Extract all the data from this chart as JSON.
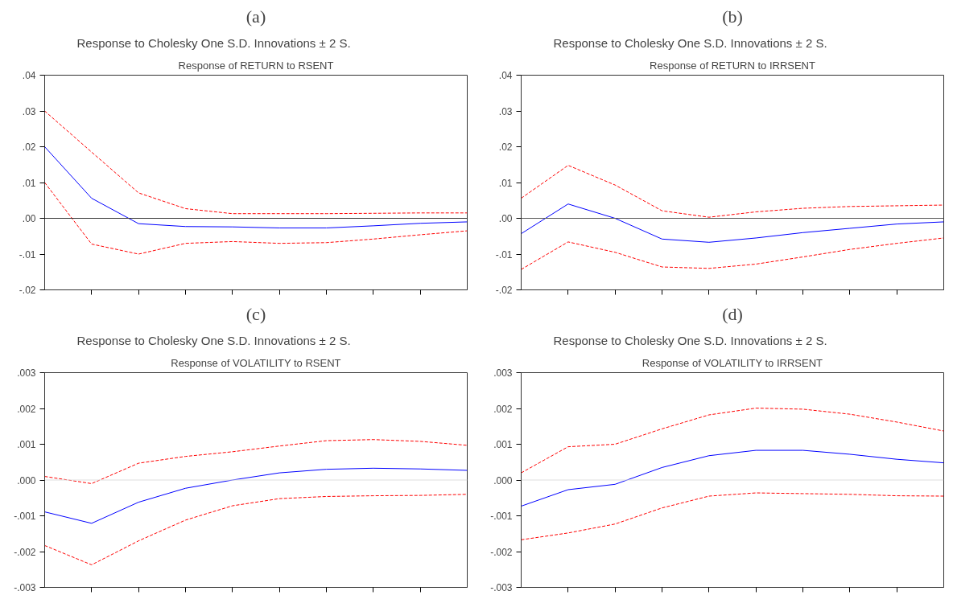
{
  "chart_data": [
    {
      "type": "line",
      "title": "Response to Cholesky One S.D. Innovations ± 2 S.",
      "subtitle": "Response of RETURN to RSENT",
      "annotations": [
        "(a)"
      ],
      "categories": [
        null,
        null,
        null,
        null,
        null,
        null,
        null,
        null,
        null,
        null
      ],
      "ylim": [
        -0.02,
        0.04
      ],
      "yticks": [
        {
          "value": -0.02,
          "label": "-.02"
        },
        {
          "value": -0.01,
          "label": "-.01"
        },
        {
          "value": 0,
          "label": ".00"
        },
        {
          "value": 0.01,
          "label": ".01"
        },
        {
          "value": 0.02,
          "label": ".02"
        },
        {
          "value": 0.03,
          "label": ".03"
        },
        {
          "value": 0.04,
          "label": ".04"
        }
      ],
      "tick_labels": "y",
      "grid": false,
      "ref_lines": [
        {
          "axis": "y",
          "value": 0,
          "color": "#333333"
        }
      ],
      "series": [
        {
          "color": "#0000ff",
          "line_style": "solid",
          "values": [
            0.02,
            0.0056,
            -0.0015,
            -0.0023,
            -0.0024,
            -0.0027,
            -0.0027,
            -0.0021,
            -0.0014,
            -0.001
          ]
        },
        {
          "color": "#ff0000",
          "line_style": "dashed",
          "values": [
            0.03,
            0.0185,
            0.0071,
            0.0027,
            0.0013,
            0.0013,
            0.0013,
            0.0014,
            0.0015,
            0.0015
          ]
        },
        {
          "color": "#ff0000",
          "line_style": "dashed",
          "values": [
            0.01,
            -0.0072,
            -0.01,
            -0.007,
            -0.0065,
            -0.007,
            -0.0068,
            -0.0058,
            -0.0046,
            -0.0035
          ]
        }
      ]
    },
    {
      "type": "line",
      "title": "Response to Cholesky One S.D. Innovations ± 2 S.",
      "subtitle": "Response of RETURN to IRRSENT",
      "annotations": [
        "(b)"
      ],
      "categories": [
        null,
        null,
        null,
        null,
        null,
        null,
        null,
        null,
        null,
        null
      ],
      "ylim": [
        -0.02,
        0.04
      ],
      "yticks": [
        {
          "value": -0.02,
          "label": "-.02"
        },
        {
          "value": -0.01,
          "label": "-.01"
        },
        {
          "value": 0,
          "label": ".00"
        },
        {
          "value": 0.01,
          "label": ".01"
        },
        {
          "value": 0.02,
          "label": ".02"
        },
        {
          "value": 0.03,
          "label": ".03"
        },
        {
          "value": 0.04,
          "label": ".04"
        }
      ],
      "tick_labels": "y",
      "grid": false,
      "ref_lines": [
        {
          "axis": "y",
          "value": 0,
          "color": "#555555"
        }
      ],
      "series": [
        {
          "color": "#0000ff",
          "line_style": "solid",
          "values": [
            -0.0043,
            0.004,
            0.0,
            -0.0058,
            -0.0067,
            -0.0055,
            -0.004,
            -0.0028,
            -0.0016,
            -0.001
          ]
        },
        {
          "color": "#ff0000",
          "line_style": "dashed",
          "values": [
            0.0056,
            0.0148,
            0.0093,
            0.0021,
            0.0003,
            0.0018,
            0.0028,
            0.0033,
            0.0035,
            0.0037
          ]
        },
        {
          "color": "#ff0000",
          "line_style": "dashed",
          "values": [
            -0.0143,
            -0.0066,
            -0.0095,
            -0.0136,
            -0.014,
            -0.0128,
            -0.0108,
            -0.0087,
            -0.007,
            -0.0055
          ]
        }
      ]
    },
    {
      "type": "line",
      "title": "Response to Cholesky One S.D. Innovations ± 2 S.",
      "subtitle": "Response of VOLATILITY to RSENT",
      "annotations": [
        "(c)"
      ],
      "categories": [
        null,
        null,
        null,
        null,
        null,
        null,
        null,
        null,
        null,
        null
      ],
      "ylim": [
        -0.003,
        0.003
      ],
      "yticks": [
        {
          "value": -0.003,
          "label": "-.003"
        },
        {
          "value": -0.002,
          "label": "-.002"
        },
        {
          "value": -0.001,
          "label": "-.001"
        },
        {
          "value": 0,
          "label": ".000"
        },
        {
          "value": 0.001,
          "label": ".001"
        },
        {
          "value": 0.002,
          "label": ".002"
        },
        {
          "value": 0.003,
          "label": ".003"
        }
      ],
      "tick_labels": "y",
      "grid": false,
      "ref_lines": [
        {
          "axis": "y",
          "value": 0,
          "color": "#dddddd"
        }
      ],
      "series": [
        {
          "color": "#0000ff",
          "line_style": "solid",
          "values": [
            -0.00089,
            -0.00121,
            -0.00062,
            -0.00023,
            0.0,
            0.0002,
            0.0003,
            0.00033,
            0.00031,
            0.00027
          ]
        },
        {
          "color": "#ff0000",
          "line_style": "dashed",
          "values": [
            0.0001,
            -0.0001,
            0.00047,
            0.00066,
            0.00079,
            0.00095,
            0.0011,
            0.00113,
            0.00108,
            0.00097
          ]
        },
        {
          "color": "#ff0000",
          "line_style": "dashed",
          "values": [
            -0.00183,
            -0.00237,
            -0.0017,
            -0.00112,
            -0.00072,
            -0.00052,
            -0.00046,
            -0.00044,
            -0.00043,
            -0.0004
          ]
        }
      ]
    },
    {
      "type": "line",
      "title": "Response to Cholesky One S.D. Innovations ± 2 S.",
      "subtitle": "Response of VOLATILITY to IRRSENT",
      "annotations": [
        "(d)"
      ],
      "categories": [
        null,
        null,
        null,
        null,
        null,
        null,
        null,
        null,
        null,
        null
      ],
      "ylim": [
        -0.003,
        0.003
      ],
      "yticks": [
        {
          "value": -0.003,
          "label": "-.003"
        },
        {
          "value": -0.002,
          "label": "-.002"
        },
        {
          "value": -0.001,
          "label": "-.001"
        },
        {
          "value": 0,
          "label": ".000"
        },
        {
          "value": 0.001,
          "label": ".001"
        },
        {
          "value": 0.002,
          "label": ".002"
        },
        {
          "value": 0.003,
          "label": ".003"
        }
      ],
      "tick_labels": "y",
      "grid": false,
      "ref_lines": [
        {
          "axis": "y",
          "value": 0,
          "color": "#dddddd"
        }
      ],
      "series": [
        {
          "color": "#0000ff",
          "line_style": "solid",
          "values": [
            -0.00073,
            -0.00027,
            -0.00012,
            0.00035,
            0.00068,
            0.00083,
            0.00083,
            0.00072,
            0.00058,
            0.00048
          ]
        },
        {
          "color": "#ff0000",
          "line_style": "dashed",
          "values": [
            0.0002,
            0.00093,
            0.001,
            0.00143,
            0.00182,
            0.00201,
            0.00198,
            0.00184,
            0.00162,
            0.00137
          ]
        },
        {
          "color": "#ff0000",
          "line_style": "dashed",
          "values": [
            -0.00167,
            -0.00148,
            -0.00123,
            -0.00078,
            -0.00045,
            -0.00036,
            -0.00038,
            -0.0004,
            -0.00044,
            -0.00045
          ]
        }
      ]
    }
  ]
}
